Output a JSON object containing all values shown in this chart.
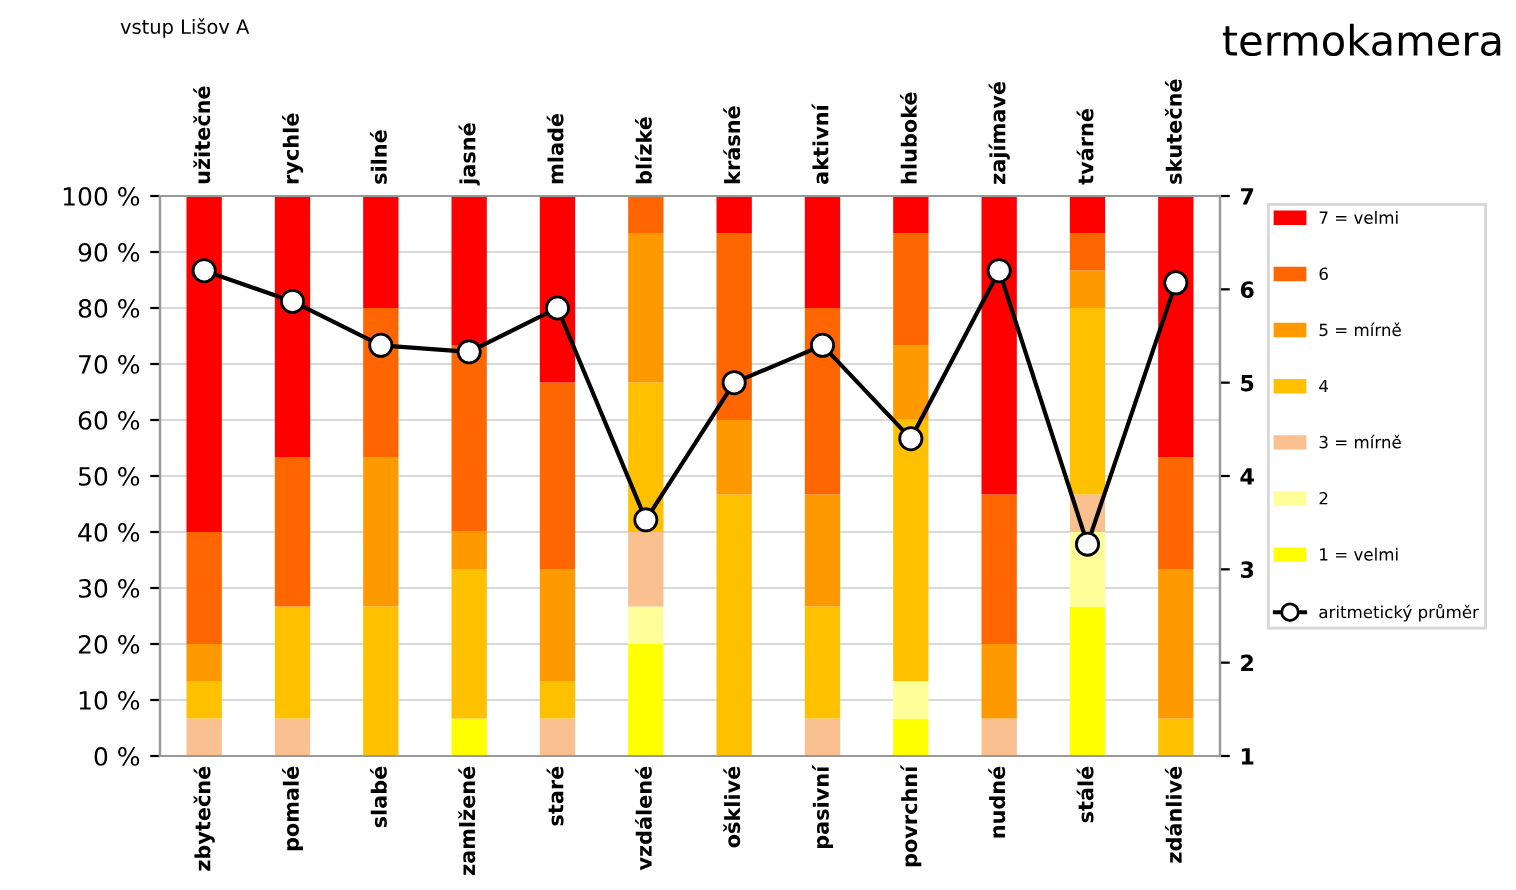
{
  "chart_data": {
    "type": "bar",
    "stacked": true,
    "title": "termokamera",
    "subtitle": "vstup Lišov A",
    "categories": [
      "zbytečné",
      "pomalé",
      "slabé",
      "zamlžené",
      "staré",
      "vzdálené",
      "ošklivé",
      "pasivní",
      "povrchní",
      "nudné",
      "stálé",
      "zdánlivé"
    ],
    "annotations": [
      "užitečné",
      "rychlé",
      "silné",
      "jasné",
      "mladé",
      "blízké",
      "krásné",
      "aktivní",
      "hluboké",
      "zajímavé",
      "tvárné",
      "skutečné"
    ],
    "series": [
      {
        "name": "1 = velmi",
        "color": "#ffff00",
        "values": [
          0,
          0,
          0,
          6.7,
          0,
          20,
          0,
          0,
          6.7,
          0,
          26.7,
          0
        ]
      },
      {
        "name": "2",
        "color": "#ffff99",
        "values": [
          0,
          0,
          0,
          0,
          0,
          6.7,
          0,
          0,
          6.7,
          0,
          13.3,
          0
        ]
      },
      {
        "name": "3 = mírně",
        "color": "#fac090",
        "values": [
          6.7,
          6.7,
          0,
          0,
          6.7,
          13.3,
          0,
          6.7,
          0,
          6.7,
          6.7,
          0
        ]
      },
      {
        "name": "4",
        "color": "#ffc000",
        "values": [
          6.7,
          20,
          26.7,
          26.7,
          6.7,
          26.7,
          46.7,
          20,
          46.7,
          0,
          33.3,
          6.7
        ]
      },
      {
        "name": "5 = mírně",
        "color": "#ff9900",
        "values": [
          6.6,
          0,
          26.7,
          6.7,
          20,
          26.7,
          13.3,
          20,
          13.3,
          13.3,
          6.7,
          26.7
        ]
      },
      {
        "name": "6",
        "color": "#ff6600",
        "values": [
          20,
          26.7,
          26.6,
          33.3,
          33.3,
          6.6,
          33.3,
          33.3,
          20,
          26.7,
          6.7,
          20
        ]
      },
      {
        "name": "7 = velmi",
        "color": "#ff0000",
        "values": [
          60,
          46.6,
          20,
          26.6,
          33.3,
          0,
          6.7,
          20,
          6.6,
          53.3,
          6.6,
          46.6
        ]
      },
      {
        "name": "aritmetický průměr",
        "type": "line",
        "axis": "y2",
        "color": "#000000",
        "marker": "circle",
        "values": [
          6.2,
          5.87,
          5.4,
          5.33,
          5.8,
          3.53,
          5.0,
          5.4,
          4.4,
          6.2,
          3.27,
          6.07
        ]
      }
    ],
    "ylim": [
      0,
      100
    ],
    "yticks": [
      {
        "value": 0,
        "label": "0 %"
      },
      {
        "value": 10,
        "label": "10 %"
      },
      {
        "value": 20,
        "label": "20 %"
      },
      {
        "value": 30,
        "label": "30 %"
      },
      {
        "value": 40,
        "label": "40 %"
      },
      {
        "value": 50,
        "label": "50 %"
      },
      {
        "value": 60,
        "label": "60 %"
      },
      {
        "value": 70,
        "label": "70 %"
      },
      {
        "value": 80,
        "label": "80 %"
      },
      {
        "value": 90,
        "label": "90 %"
      },
      {
        "value": 100,
        "label": "100 %"
      }
    ],
    "y2lim": [
      1,
      7
    ],
    "y2ticks": [
      1,
      2,
      3,
      4,
      5,
      6,
      7
    ],
    "grid": "y",
    "legend": "right"
  }
}
